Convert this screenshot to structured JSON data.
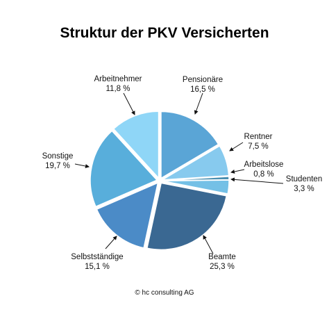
{
  "chart_data": {
    "type": "pie",
    "title": "Struktur der PKV Versicherten",
    "unit": "%",
    "slices": [
      {
        "label": "Pensionäre",
        "value": 16.5,
        "value_text": "16,5 %",
        "color": "#5aa5d6"
      },
      {
        "label": "Rentner",
        "value": 7.5,
        "value_text": "7,5 %",
        "color": "#87caee"
      },
      {
        "label": "Arbeitslose",
        "value": 0.8,
        "value_text": "0,8 %",
        "color": "#4a8fb0"
      },
      {
        "label": "Studenten",
        "value": 3.3,
        "value_text": "3,3 %",
        "color": "#74c0e6"
      },
      {
        "label": "Beamte",
        "value": 25.3,
        "value_text": "25,3 %",
        "color": "#3a6892"
      },
      {
        "label": "Selbstständige",
        "value": 15.1,
        "value_text": "15,1 %",
        "color": "#4b8bc7"
      },
      {
        "label": "Sonstige",
        "value": 19.7,
        "value_text": "19,7 %",
        "color": "#58aedb"
      },
      {
        "label": "Arbeitnehmer",
        "value": 11.8,
        "value_text": "11,8 %",
        "color": "#8fd6f7"
      }
    ]
  },
  "footer": {
    "copyright": "© hc consulting AG"
  }
}
